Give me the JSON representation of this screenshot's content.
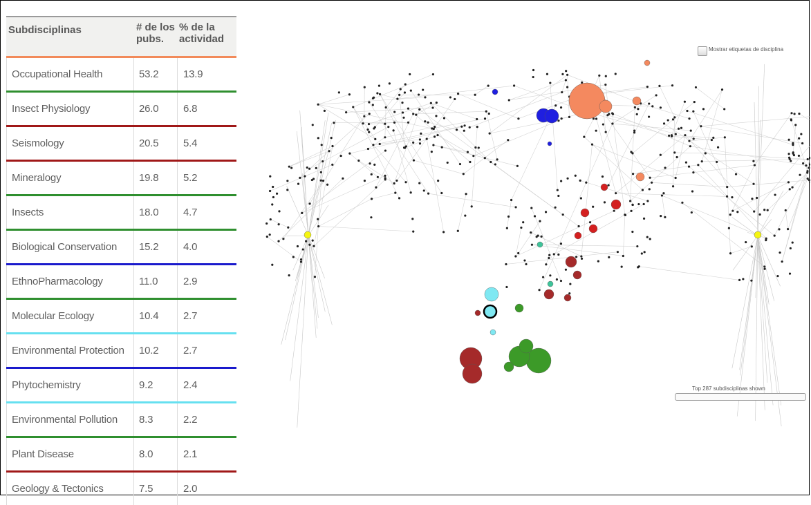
{
  "table": {
    "headers": {
      "subdisciplines": "Subdisciplinas",
      "pubs": "# de los pubs.",
      "activity": "% de la actividad"
    },
    "header_accent": "#f28a5a",
    "rows": [
      {
        "name": "Occupational Health",
        "pubs": "53.2",
        "activity": "13.9",
        "color": "#2f8f2f"
      },
      {
        "name": "Insect Physiology",
        "pubs": "26.0",
        "activity": "6.8",
        "color": "#a01818"
      },
      {
        "name": "Seismology",
        "pubs": "20.5",
        "activity": "5.4",
        "color": "#a01818"
      },
      {
        "name": "Mineralogy",
        "pubs": "19.8",
        "activity": "5.2",
        "color": "#2f8f2f"
      },
      {
        "name": "Insects",
        "pubs": "18.0",
        "activity": "4.7",
        "color": "#2f8f2f"
      },
      {
        "name": "Biological Conservation",
        "pubs": "15.2",
        "activity": "4.0",
        "color": "#1a1acc"
      },
      {
        "name": "EthnoPharmacology",
        "pubs": "11.0",
        "activity": "2.9",
        "color": "#2f8f2f"
      },
      {
        "name": "Molecular Ecology",
        "pubs": "10.4",
        "activity": "2.7",
        "color": "#66e0f0"
      },
      {
        "name": "Environmental Protection",
        "pubs": "10.2",
        "activity": "2.7",
        "color": "#1a1acc"
      },
      {
        "name": "Phytochemistry",
        "pubs": "9.2",
        "activity": "2.4",
        "color": "#66e0f0"
      },
      {
        "name": "Environmental Pollution",
        "pubs": "8.3",
        "activity": "2.2",
        "color": "#2f8f2f"
      },
      {
        "name": "Plant Disease",
        "pubs": "8.0",
        "activity": "2.1",
        "color": "#a01818"
      },
      {
        "name": "Geology & Tectonics",
        "pubs": "7.5",
        "activity": "2.0",
        "color": "#a01818"
      }
    ]
  },
  "map": {
    "show_labels_checkbox": "Mostrar etiquetas de disciplina",
    "slider_label": "Top 287 subdisciplinas shown",
    "colors": {
      "orange": "#f4895f",
      "blue": "#1f1fe0",
      "red": "#d42020",
      "darkred": "#a52a2a",
      "green": "#3c9a28",
      "cyan": "#7fe8f2",
      "yellow": "#f5f511",
      "teal": "#3ec49a",
      "edge": "#c8c8c8",
      "node": "#222222"
    }
  }
}
